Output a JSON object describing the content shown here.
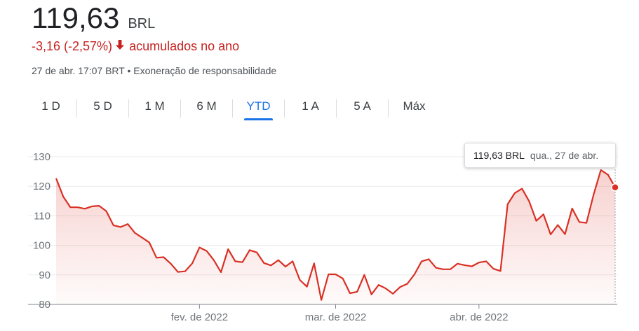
{
  "quote": {
    "price": "119,63",
    "currency": "BRL",
    "change_text": "-3,16 (-2,57%)",
    "change_suffix": "acumulados no ano",
    "timestamp": "27 de abr. 17:07 BRT",
    "separator": "•",
    "disclaimer": "Exoneração de responsabilidade"
  },
  "tabs": [
    {
      "label": "1 D"
    },
    {
      "label": "5 D"
    },
    {
      "label": "1 M"
    },
    {
      "label": "6 M"
    },
    {
      "label": "YTD"
    },
    {
      "label": "1 A"
    },
    {
      "label": "5 A"
    },
    {
      "label": "Máx"
    }
  ],
  "active_tab": "YTD",
  "tooltip": {
    "price": "119,63 BRL",
    "date": "qua., 27 de abr."
  },
  "colors": {
    "line": "#d93025",
    "down": "#c5221f",
    "active_tab": "#1a73e8"
  },
  "chart_data": {
    "type": "area",
    "title": "",
    "xlabel": "",
    "ylabel": "",
    "ylim": [
      80,
      130
    ],
    "yticks": [
      80,
      90,
      100,
      110,
      120,
      130
    ],
    "xticks": [
      {
        "label": "fev. de 2022",
        "index": 20
      },
      {
        "label": "mar. de 2022",
        "index": 39
      },
      {
        "label": "abr. de 2022",
        "index": 59
      }
    ],
    "grid": true,
    "series": [
      {
        "values": [
          122.7,
          116.5,
          112.9,
          112.9,
          112.4,
          113.2,
          113.4,
          111.6,
          106.8,
          106.2,
          107.2,
          104.2,
          102.6,
          101.0,
          95.8,
          96.0,
          93.8,
          91.0,
          91.2,
          93.9,
          99.3,
          98.1,
          95.0,
          90.9,
          98.7,
          94.6,
          94.3,
          98.4,
          97.6,
          94.0,
          93.2,
          95.0,
          92.8,
          94.6,
          88.3,
          86.0,
          93.9,
          81.5,
          90.2,
          90.2,
          88.8,
          83.8,
          84.3,
          90.0,
          83.4,
          86.6,
          85.4,
          83.6,
          85.9,
          87.0,
          90.2,
          94.6,
          95.3,
          92.4,
          91.9,
          91.9,
          93.8,
          93.3,
          92.9,
          94.2,
          94.6,
          92.1,
          91.3,
          113.9,
          117.7,
          119.2,
          114.9,
          108.3,
          110.5,
          103.7,
          106.9,
          103.8,
          112.5,
          107.9,
          107.6,
          117.2,
          125.5,
          123.9,
          119.63
        ]
      }
    ],
    "last_point": {
      "value": 119.63,
      "label": "119,63 BRL"
    }
  }
}
